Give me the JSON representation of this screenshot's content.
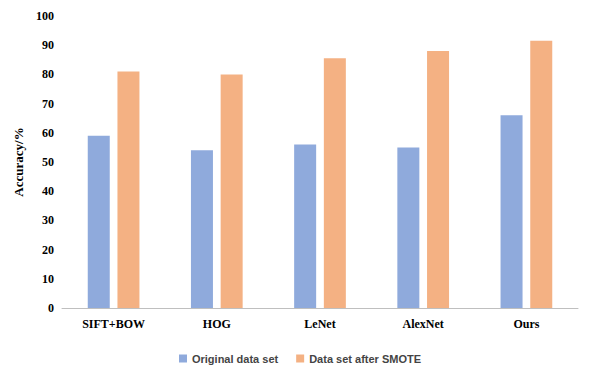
{
  "chart_data": {
    "type": "bar",
    "y_label": "Accuracy/%",
    "categories": [
      "SIFT+BOW",
      "HOG",
      "LeNet",
      "AlexNet",
      "Ours"
    ],
    "series": [
      {
        "name": "Original data set",
        "color": "#8faadc",
        "values": [
          59,
          54,
          56,
          55,
          66
        ]
      },
      {
        "name": "Data set after SMOTE",
        "color": "#f4b183",
        "values": [
          81,
          80,
          85.5,
          88,
          91.5
        ]
      }
    ],
    "ylim": [
      0,
      100
    ],
    "yticks": [
      0,
      10,
      20,
      30,
      40,
      50,
      60,
      70,
      80,
      90,
      100
    ],
    "grid": false,
    "legend": "bottom"
  }
}
